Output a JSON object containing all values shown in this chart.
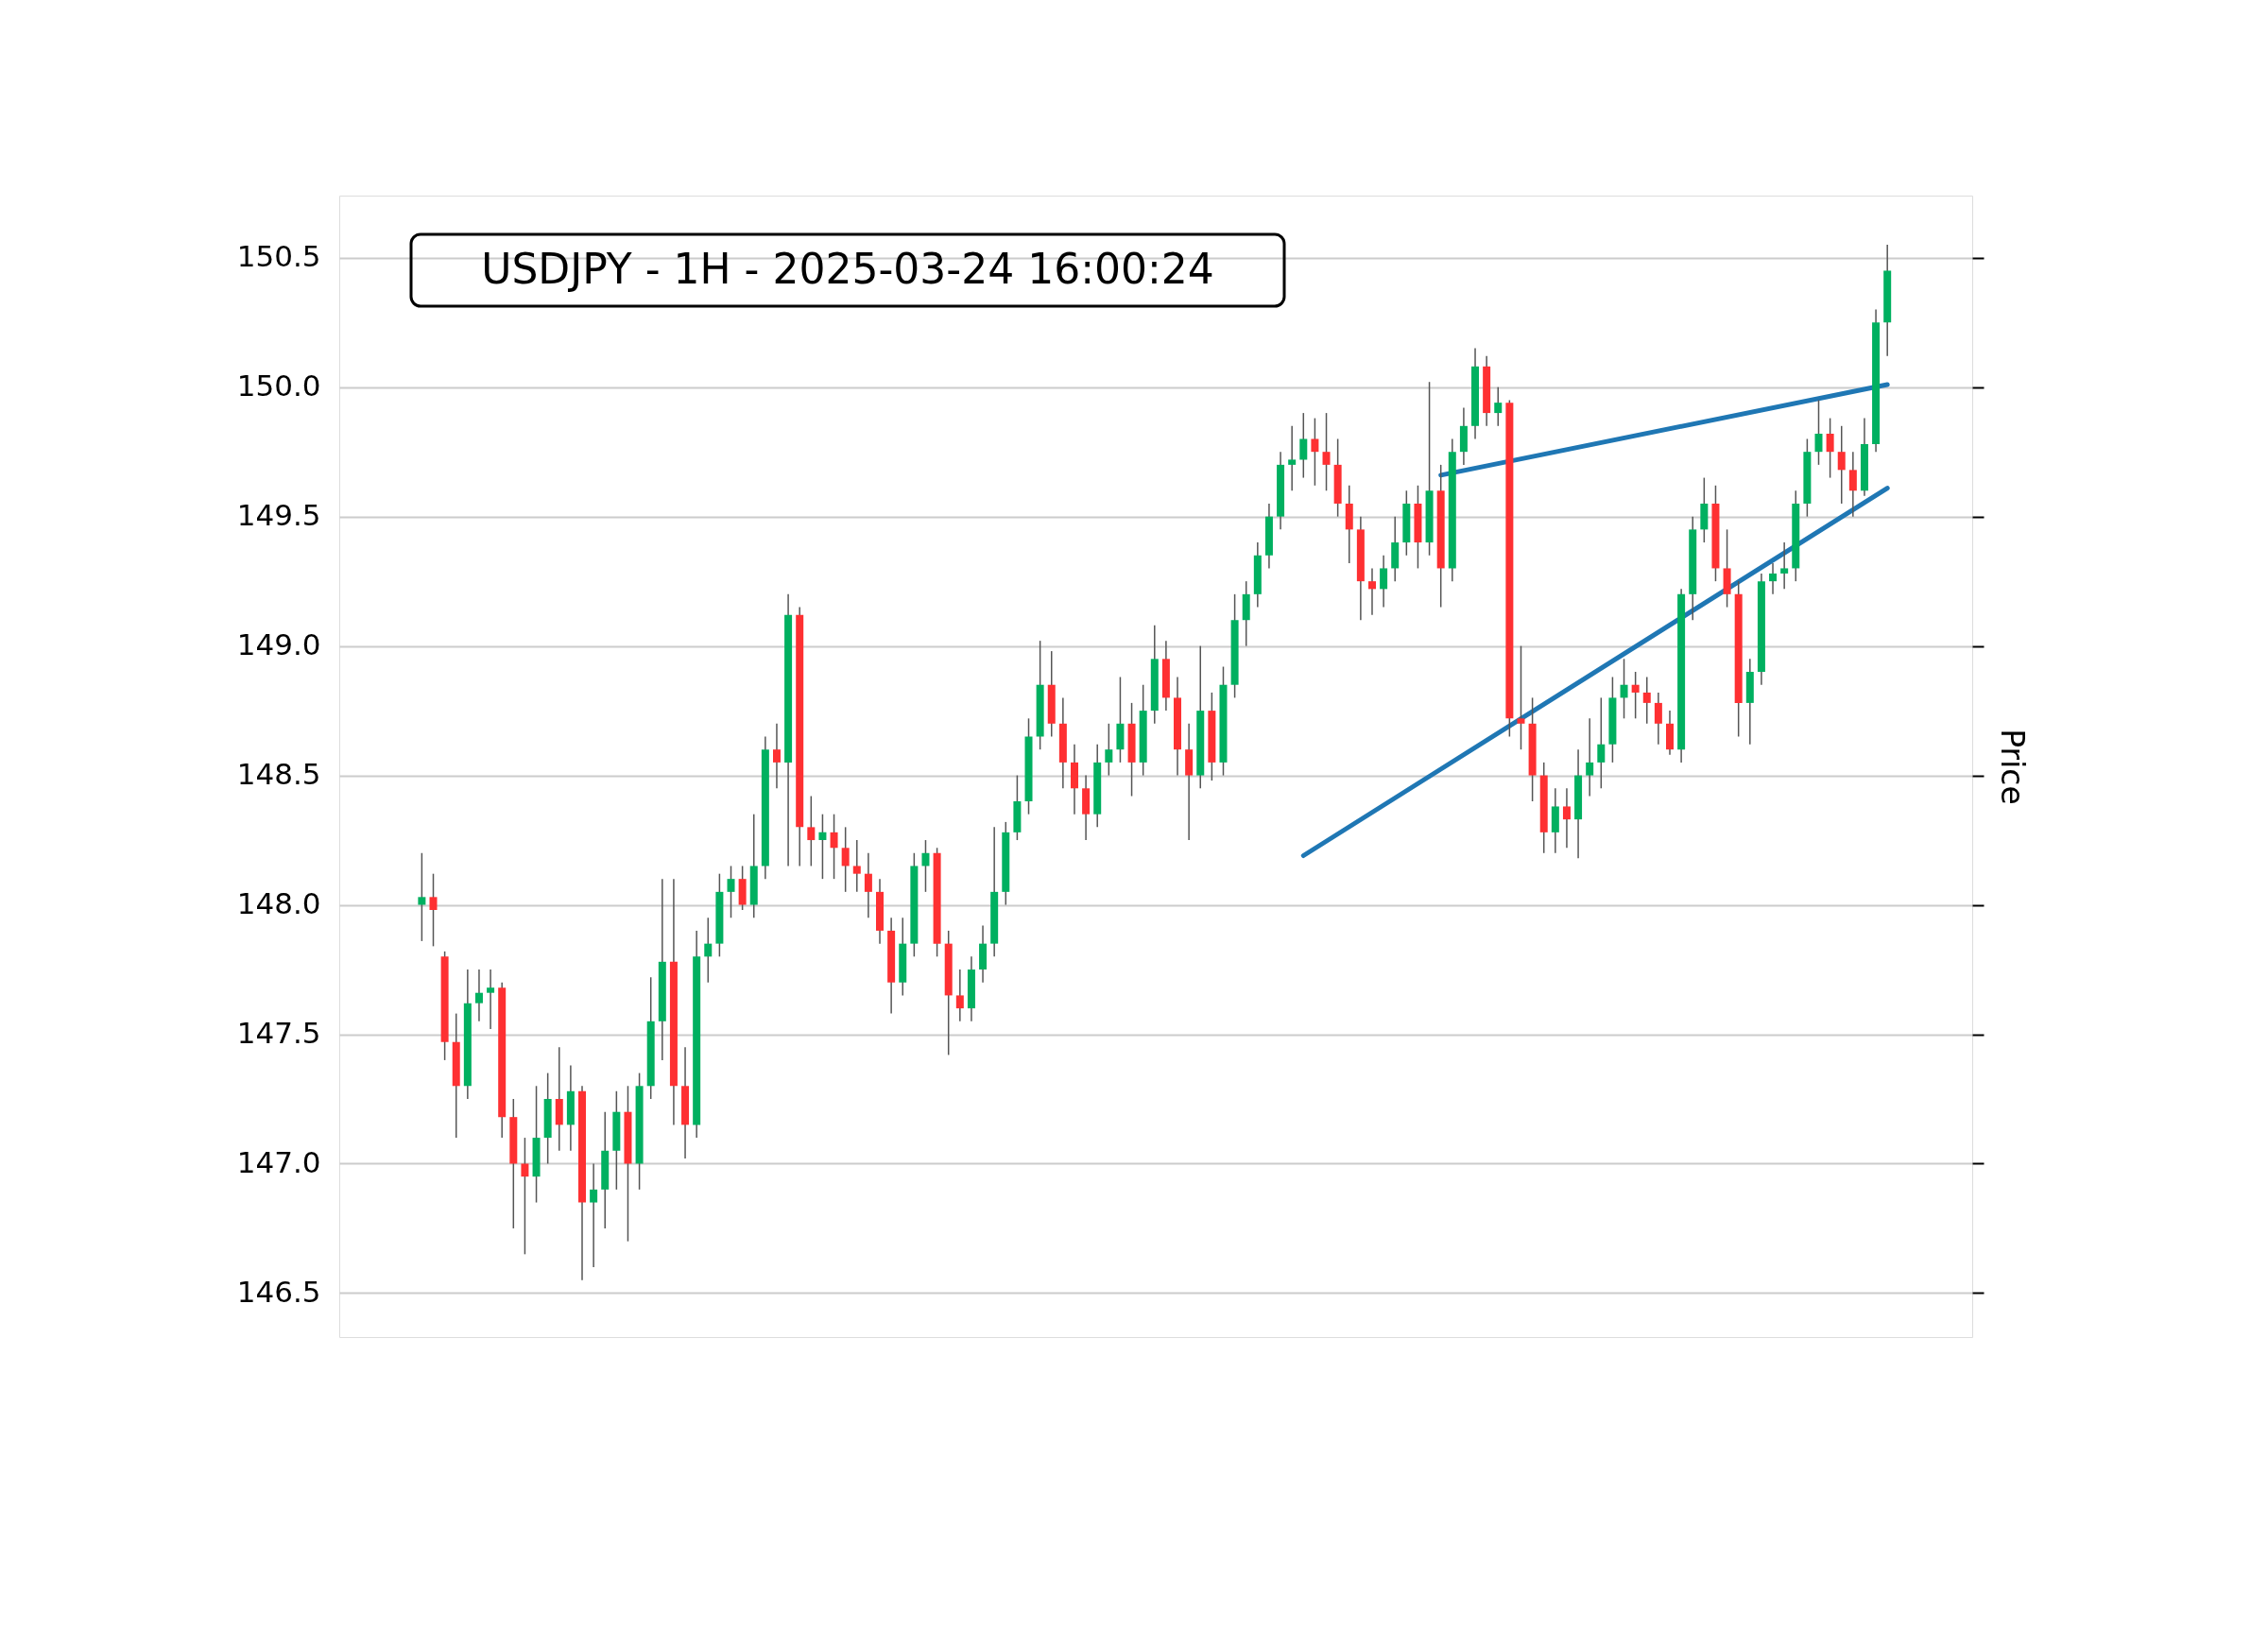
{
  "chart_data": {
    "type": "candlestick",
    "title": "USDJPY - 1H - 2025-03-24 16:00:24",
    "ylabel": "Price",
    "categories": [
      null,
      null,
      null,
      null,
      null,
      null,
      null,
      null,
      null,
      null,
      null,
      null,
      null,
      null,
      null,
      null,
      null,
      null,
      null,
      null,
      null,
      null,
      null,
      null,
      null,
      null,
      null,
      null,
      null,
      null,
      null,
      null,
      null,
      null,
      null,
      null,
      null,
      null,
      null,
      null,
      null,
      null,
      null,
      null,
      null,
      null,
      null,
      null,
      null,
      null,
      null,
      null,
      null,
      null,
      null,
      null,
      null,
      null,
      null,
      null,
      null,
      null,
      null,
      null,
      null,
      null,
      null,
      null,
      null,
      null,
      null,
      null,
      null,
      null,
      null,
      null,
      null,
      null,
      null,
      null,
      null,
      null,
      null,
      null,
      null,
      null,
      null,
      null,
      null,
      null,
      null,
      null,
      null,
      null,
      null,
      null,
      null,
      null,
      null,
      null,
      null,
      null,
      null,
      null,
      null,
      null,
      null,
      null,
      null,
      null,
      null,
      null,
      null,
      null,
      null,
      null,
      null,
      null,
      null,
      null,
      null,
      null,
      null,
      null,
      null,
      null,
      null,
      null,
      null
    ],
    "ohlc": [
      [
        148.0,
        148.2,
        147.86,
        148.03
      ],
      [
        148.03,
        148.12,
        147.84,
        147.98
      ],
      [
        147.8,
        147.82,
        147.4,
        147.47
      ],
      [
        147.47,
        147.58,
        147.1,
        147.3
      ],
      [
        147.3,
        147.75,
        147.25,
        147.62
      ],
      [
        147.62,
        147.75,
        147.55,
        147.66
      ],
      [
        147.66,
        147.75,
        147.52,
        147.68
      ],
      [
        147.68,
        147.7,
        147.1,
        147.18
      ],
      [
        147.18,
        147.25,
        146.75,
        147.0
      ],
      [
        147.0,
        147.1,
        146.65,
        146.95
      ],
      [
        146.95,
        147.3,
        146.85,
        147.1
      ],
      [
        147.1,
        147.35,
        147.0,
        147.25
      ],
      [
        147.25,
        147.45,
        147.05,
        147.15
      ],
      [
        147.15,
        147.38,
        147.05,
        147.28
      ],
      [
        147.28,
        147.3,
        146.55,
        146.85
      ],
      [
        146.85,
        147.0,
        146.6,
        146.9
      ],
      [
        146.9,
        147.2,
        146.75,
        147.05
      ],
      [
        147.05,
        147.28,
        146.9,
        147.2
      ],
      [
        147.2,
        147.3,
        146.7,
        147.0
      ],
      [
        147.0,
        147.35,
        146.9,
        147.3
      ],
      [
        147.3,
        147.72,
        147.25,
        147.55
      ],
      [
        147.55,
        148.1,
        147.4,
        147.78
      ],
      [
        147.78,
        148.1,
        147.15,
        147.3
      ],
      [
        147.3,
        147.45,
        147.02,
        147.15
      ],
      [
        147.15,
        147.9,
        147.1,
        147.8
      ],
      [
        147.8,
        147.95,
        147.7,
        147.85
      ],
      [
        147.85,
        148.12,
        147.8,
        148.05
      ],
      [
        148.05,
        148.15,
        147.95,
        148.1
      ],
      [
        148.1,
        148.15,
        147.98,
        148.0
      ],
      [
        148.0,
        148.35,
        147.95,
        148.15
      ],
      [
        148.15,
        148.65,
        148.1,
        148.6
      ],
      [
        148.6,
        148.7,
        148.45,
        148.55
      ],
      [
        148.55,
        149.2,
        148.15,
        149.12
      ],
      [
        149.12,
        149.15,
        148.15,
        148.3
      ],
      [
        148.3,
        148.42,
        148.15,
        148.25
      ],
      [
        148.25,
        148.35,
        148.1,
        148.28
      ],
      [
        148.28,
        148.35,
        148.1,
        148.22
      ],
      [
        148.22,
        148.3,
        148.05,
        148.15
      ],
      [
        148.15,
        148.25,
        148.05,
        148.12
      ],
      [
        148.12,
        148.2,
        147.95,
        148.05
      ],
      [
        148.05,
        148.1,
        147.85,
        147.9
      ],
      [
        147.9,
        147.95,
        147.58,
        147.7
      ],
      [
        147.7,
        147.95,
        147.65,
        147.85
      ],
      [
        147.85,
        148.2,
        147.8,
        148.15
      ],
      [
        148.15,
        148.25,
        148.05,
        148.2
      ],
      [
        148.2,
        148.22,
        147.8,
        147.85
      ],
      [
        147.85,
        147.9,
        147.42,
        147.65
      ],
      [
        147.65,
        147.75,
        147.55,
        147.6
      ],
      [
        147.6,
        147.8,
        147.55,
        147.75
      ],
      [
        147.75,
        147.92,
        147.7,
        147.85
      ],
      [
        147.85,
        148.3,
        147.8,
        148.05
      ],
      [
        148.05,
        148.32,
        148.0,
        148.28
      ],
      [
        148.28,
        148.5,
        148.25,
        148.4
      ],
      [
        148.4,
        148.72,
        148.35,
        148.65
      ],
      [
        148.65,
        149.02,
        148.6,
        148.85
      ],
      [
        148.85,
        148.98,
        148.65,
        148.7
      ],
      [
        148.7,
        148.8,
        148.45,
        148.55
      ],
      [
        148.55,
        148.62,
        148.35,
        148.45
      ],
      [
        148.45,
        148.5,
        148.25,
        148.35
      ],
      [
        148.35,
        148.62,
        148.3,
        148.55
      ],
      [
        148.55,
        148.7,
        148.5,
        148.6
      ],
      [
        148.6,
        148.88,
        148.55,
        148.7
      ],
      [
        148.7,
        148.78,
        148.42,
        148.55
      ],
      [
        148.55,
        148.85,
        148.5,
        148.75
      ],
      [
        148.75,
        149.08,
        148.7,
        148.95
      ],
      [
        148.95,
        149.02,
        148.75,
        148.8
      ],
      [
        148.8,
        148.88,
        148.5,
        148.6
      ],
      [
        148.6,
        148.7,
        148.25,
        148.5
      ],
      [
        148.5,
        149.0,
        148.45,
        148.75
      ],
      [
        148.75,
        148.82,
        148.48,
        148.55
      ],
      [
        148.55,
        148.92,
        148.5,
        148.85
      ],
      [
        148.85,
        149.2,
        148.8,
        149.1
      ],
      [
        149.1,
        149.25,
        149.0,
        149.2
      ],
      [
        149.2,
        149.4,
        149.15,
        149.35
      ],
      [
        149.35,
        149.55,
        149.3,
        149.5
      ],
      [
        149.5,
        149.75,
        149.45,
        149.7
      ],
      [
        149.7,
        149.85,
        149.6,
        149.72
      ],
      [
        149.72,
        149.9,
        149.65,
        149.8
      ],
      [
        149.8,
        149.88,
        149.62,
        149.75
      ],
      [
        149.75,
        149.9,
        149.6,
        149.7
      ],
      [
        149.7,
        149.8,
        149.5,
        149.55
      ],
      [
        149.55,
        149.62,
        149.32,
        149.45
      ],
      [
        149.45,
        149.5,
        149.1,
        149.25
      ],
      [
        149.25,
        149.3,
        149.12,
        149.22
      ],
      [
        149.22,
        149.35,
        149.15,
        149.3
      ],
      [
        149.3,
        149.5,
        149.25,
        149.4
      ],
      [
        149.4,
        149.6,
        149.35,
        149.55
      ],
      [
        149.55,
        149.62,
        149.3,
        149.4
      ],
      [
        149.4,
        150.02,
        149.35,
        149.6
      ],
      [
        149.6,
        149.7,
        149.15,
        149.3
      ],
      [
        149.3,
        149.8,
        149.25,
        149.75
      ],
      [
        149.75,
        149.92,
        149.7,
        149.85
      ],
      [
        149.85,
        150.15,
        149.8,
        150.08
      ],
      [
        150.08,
        150.12,
        149.85,
        149.9
      ],
      [
        149.9,
        150.0,
        149.85,
        149.94
      ],
      [
        149.94,
        149.95,
        148.65,
        148.72
      ],
      [
        148.72,
        149.0,
        148.6,
        148.7
      ],
      [
        148.7,
        148.8,
        148.4,
        148.5
      ],
      [
        148.5,
        148.55,
        148.2,
        148.28
      ],
      [
        148.28,
        148.45,
        148.2,
        148.38
      ],
      [
        148.38,
        148.45,
        148.22,
        148.33
      ],
      [
        148.33,
        148.6,
        148.18,
        148.5
      ],
      [
        148.5,
        148.72,
        148.42,
        148.55
      ],
      [
        148.55,
        148.8,
        148.45,
        148.62
      ],
      [
        148.62,
        148.88,
        148.55,
        148.8
      ],
      [
        148.8,
        148.95,
        148.72,
        148.85
      ],
      [
        148.85,
        148.9,
        148.72,
        148.82
      ],
      [
        148.82,
        148.88,
        148.7,
        148.78
      ],
      [
        148.78,
        148.82,
        148.62,
        148.7
      ],
      [
        148.7,
        148.75,
        148.58,
        148.6
      ],
      [
        148.6,
        149.22,
        148.55,
        149.2
      ],
      [
        149.2,
        149.5,
        149.1,
        149.45
      ],
      [
        149.45,
        149.65,
        149.4,
        149.55
      ],
      [
        149.55,
        149.62,
        149.25,
        149.3
      ],
      [
        149.3,
        149.45,
        149.15,
        149.2
      ],
      [
        149.2,
        149.25,
        148.65,
        148.78
      ],
      [
        148.78,
        148.95,
        148.62,
        148.9
      ],
      [
        148.9,
        149.28,
        148.85,
        149.25
      ],
      [
        149.25,
        149.32,
        149.2,
        149.28
      ],
      [
        149.28,
        149.4,
        149.22,
        149.3
      ],
      [
        149.3,
        149.6,
        149.25,
        149.55
      ],
      [
        149.55,
        149.8,
        149.5,
        149.75
      ],
      [
        149.75,
        149.95,
        149.7,
        149.82
      ],
      [
        149.82,
        149.88,
        149.65,
        149.75
      ],
      [
        149.75,
        149.85,
        149.55,
        149.68
      ],
      [
        149.68,
        149.75,
        149.5,
        149.6
      ],
      [
        149.6,
        149.88,
        149.58,
        149.78
      ],
      [
        149.78,
        150.3,
        149.75,
        150.25
      ],
      [
        150.25,
        150.55,
        150.12,
        150.45
      ]
    ],
    "colors": [
      "#00b060",
      "#fe3032",
      "#fe3032",
      "#fe3032",
      "#00b060",
      "#00b060",
      "#00b060",
      "#fe3032",
      "#fe3032",
      "#fe3032",
      "#00b060",
      "#00b060",
      "#fe3032",
      "#00b060",
      "#fe3032",
      "#00b060",
      "#00b060",
      "#00b060",
      "#fe3032",
      "#00b060",
      "#00b060",
      "#00b060",
      "#fe3032",
      "#fe3032",
      "#00b060",
      "#00b060",
      "#00b060",
      "#00b060",
      "#fe3032",
      "#00b060",
      "#00b060",
      "#fe3032",
      "#00b060",
      "#fe3032",
      "#fe3032",
      "#00b060",
      "#fe3032",
      "#fe3032",
      "#fe3032",
      "#fe3032",
      "#fe3032",
      "#fe3032",
      "#00b060",
      "#00b060",
      "#00b060",
      "#fe3032",
      "#fe3032",
      "#fe3032",
      "#00b060",
      "#00b060",
      "#00b060",
      "#00b060",
      "#00b060",
      "#00b060",
      "#00b060",
      "#fe3032",
      "#fe3032",
      "#fe3032",
      "#fe3032",
      "#00b060",
      "#00b060",
      "#00b060",
      "#fe3032",
      "#00b060",
      "#00b060",
      "#fe3032",
      "#fe3032",
      "#fe3032",
      "#00b060",
      "#fe3032",
      "#00b060",
      "#00b060",
      "#00b060",
      "#00b060",
      "#00b060",
      "#00b060",
      "#00b060",
      "#00b060",
      "#fe3032",
      "#fe3032",
      "#fe3032",
      "#fe3032",
      "#fe3032",
      "#fe3032",
      "#00b060",
      "#00b060",
      "#00b060",
      "#fe3032",
      "#00b060",
      "#fe3032",
      "#00b060",
      "#00b060",
      "#00b060",
      "#fe3032",
      "#00b060",
      "#fe3032",
      "#fe3032",
      "#fe3032",
      "#fe3032",
      "#00b060",
      "#fe3032",
      "#00b060",
      "#00b060",
      "#00b060",
      "#00b060",
      "#00b060",
      "#fe3032",
      "#fe3032",
      "#fe3032",
      "#fe3032",
      "#00b060",
      "#00b060",
      "#00b060",
      "#fe3032",
      "#fe3032",
      "#fe3032",
      "#00b060",
      "#00b060",
      "#00b060",
      "#00b060",
      "#00b060",
      "#00b060",
      "#00b060",
      "#fe3032",
      "#fe3032",
      "#fe3032",
      "#00b060",
      "#00b060",
      "#00b060"
    ],
    "series": [
      {
        "type": "line",
        "color": "#1f77b4",
        "values": [
          null,
          null,
          null,
          null,
          null,
          null,
          null,
          null,
          null,
          null,
          null,
          null,
          null,
          null,
          null,
          null,
          null,
          null,
          null,
          null,
          null,
          null,
          null,
          null,
          null,
          null,
          null,
          null,
          null,
          null,
          null,
          null,
          null,
          null,
          null,
          null,
          null,
          null,
          null,
          null,
          null,
          null,
          null,
          null,
          null,
          null,
          null,
          null,
          null,
          null,
          null,
          null,
          null,
          null,
          null,
          null,
          null,
          null,
          null,
          null,
          null,
          null,
          null,
          null,
          null,
          null,
          null,
          null,
          null,
          null,
          null,
          null,
          null,
          null,
          null,
          null,
          null,
          148.19,
          null,
          null,
          null,
          null,
          null,
          null,
          null,
          null,
          null,
          null,
          null,
          null,
          null,
          null,
          null,
          null,
          null,
          null,
          null,
          null,
          null,
          null,
          null,
          null,
          null,
          null,
          null,
          null,
          null,
          null,
          null,
          null,
          null,
          null,
          null,
          null,
          null,
          null,
          null,
          null,
          null,
          null,
          null,
          null,
          null,
          null,
          null,
          null,
          null,
          null,
          149.61
        ]
      },
      {
        "type": "line",
        "color": "#1f77b4",
        "values": [
          null,
          null,
          null,
          null,
          null,
          null,
          null,
          null,
          null,
          null,
          null,
          null,
          null,
          null,
          null,
          null,
          null,
          null,
          null,
          null,
          null,
          null,
          null,
          null,
          null,
          null,
          null,
          null,
          null,
          null,
          null,
          null,
          null,
          null,
          null,
          null,
          null,
          null,
          null,
          null,
          null,
          null,
          null,
          null,
          null,
          null,
          null,
          null,
          null,
          null,
          null,
          null,
          null,
          null,
          null,
          null,
          null,
          null,
          null,
          null,
          null,
          null,
          null,
          null,
          null,
          null,
          null,
          null,
          null,
          null,
          null,
          null,
          null,
          null,
          null,
          null,
          null,
          null,
          null,
          null,
          null,
          null,
          null,
          null,
          null,
          null,
          null,
          null,
          null,
          149.66,
          null,
          null,
          null,
          null,
          null,
          null,
          null,
          null,
          null,
          null,
          null,
          null,
          null,
          null,
          null,
          null,
          null,
          null,
          null,
          null,
          null,
          null,
          null,
          null,
          null,
          null,
          null,
          null,
          null,
          null,
          null,
          null,
          null,
          null,
          null,
          null,
          null,
          null,
          150.01
        ]
      }
    ],
    "ylim": [
      146.33,
      150.74
    ],
    "yticks": [
      {
        "value": 146.5,
        "label": "146.5"
      },
      {
        "value": 147,
        "label": "147.0"
      },
      {
        "value": 147.5,
        "label": "147.5"
      },
      {
        "value": 148,
        "label": "148.0"
      },
      {
        "value": 148.5,
        "label": "148.5"
      },
      {
        "value": 149,
        "label": "149.0"
      },
      {
        "value": 149.5,
        "label": "149.5"
      },
      {
        "value": 150,
        "label": "150.0"
      },
      {
        "value": 150.5,
        "label": "150.5"
      }
    ],
    "grid": "y",
    "tick_labels": "y"
  }
}
